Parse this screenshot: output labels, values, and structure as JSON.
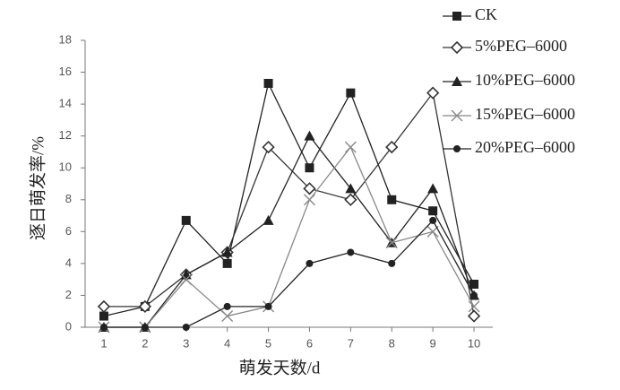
{
  "chart_data": {
    "type": "line",
    "x_label": "萌发天数/d",
    "y_label": "逐日萌发率/%",
    "categories": [
      "1",
      "2",
      "3",
      "4",
      "5",
      "6",
      "7",
      "8",
      "9",
      "10"
    ],
    "series": [
      {
        "name": "CK",
        "marker": "square",
        "color": "#222222",
        "values": [
          0.7,
          1.3,
          6.7,
          4.0,
          15.3,
          10.0,
          14.7,
          8.0,
          7.3,
          2.7
        ]
      },
      {
        "name": "5%PEG–6000",
        "marker": "diamond",
        "color": "#333333",
        "values": [
          1.3,
          1.3,
          3.3,
          4.7,
          11.3,
          8.7,
          8.0,
          11.3,
          14.7,
          0.7
        ]
      },
      {
        "name": "10%PEG–6000",
        "marker": "triangle",
        "color": "#222222",
        "values": [
          0,
          0,
          3.3,
          4.7,
          6.7,
          12.0,
          8.7,
          5.3,
          8.7,
          2.0
        ]
      },
      {
        "name": "15%PEG–6000",
        "marker": "cross",
        "color": "#888888",
        "values": [
          0,
          0,
          3.0,
          0.7,
          1.3,
          8.0,
          11.3,
          5.3,
          6.0,
          1.3
        ]
      },
      {
        "name": "20%PEG–6000",
        "marker": "circle",
        "color": "#222222",
        "values": [
          0,
          0,
          0,
          1.3,
          1.3,
          4.0,
          4.7,
          4.0,
          6.7,
          2.0
        ]
      }
    ],
    "ylim": [
      0,
      18
    ],
    "yticks": [
      0,
      2,
      4,
      6,
      8,
      10,
      12,
      14,
      16,
      18
    ],
    "legend": "right"
  }
}
